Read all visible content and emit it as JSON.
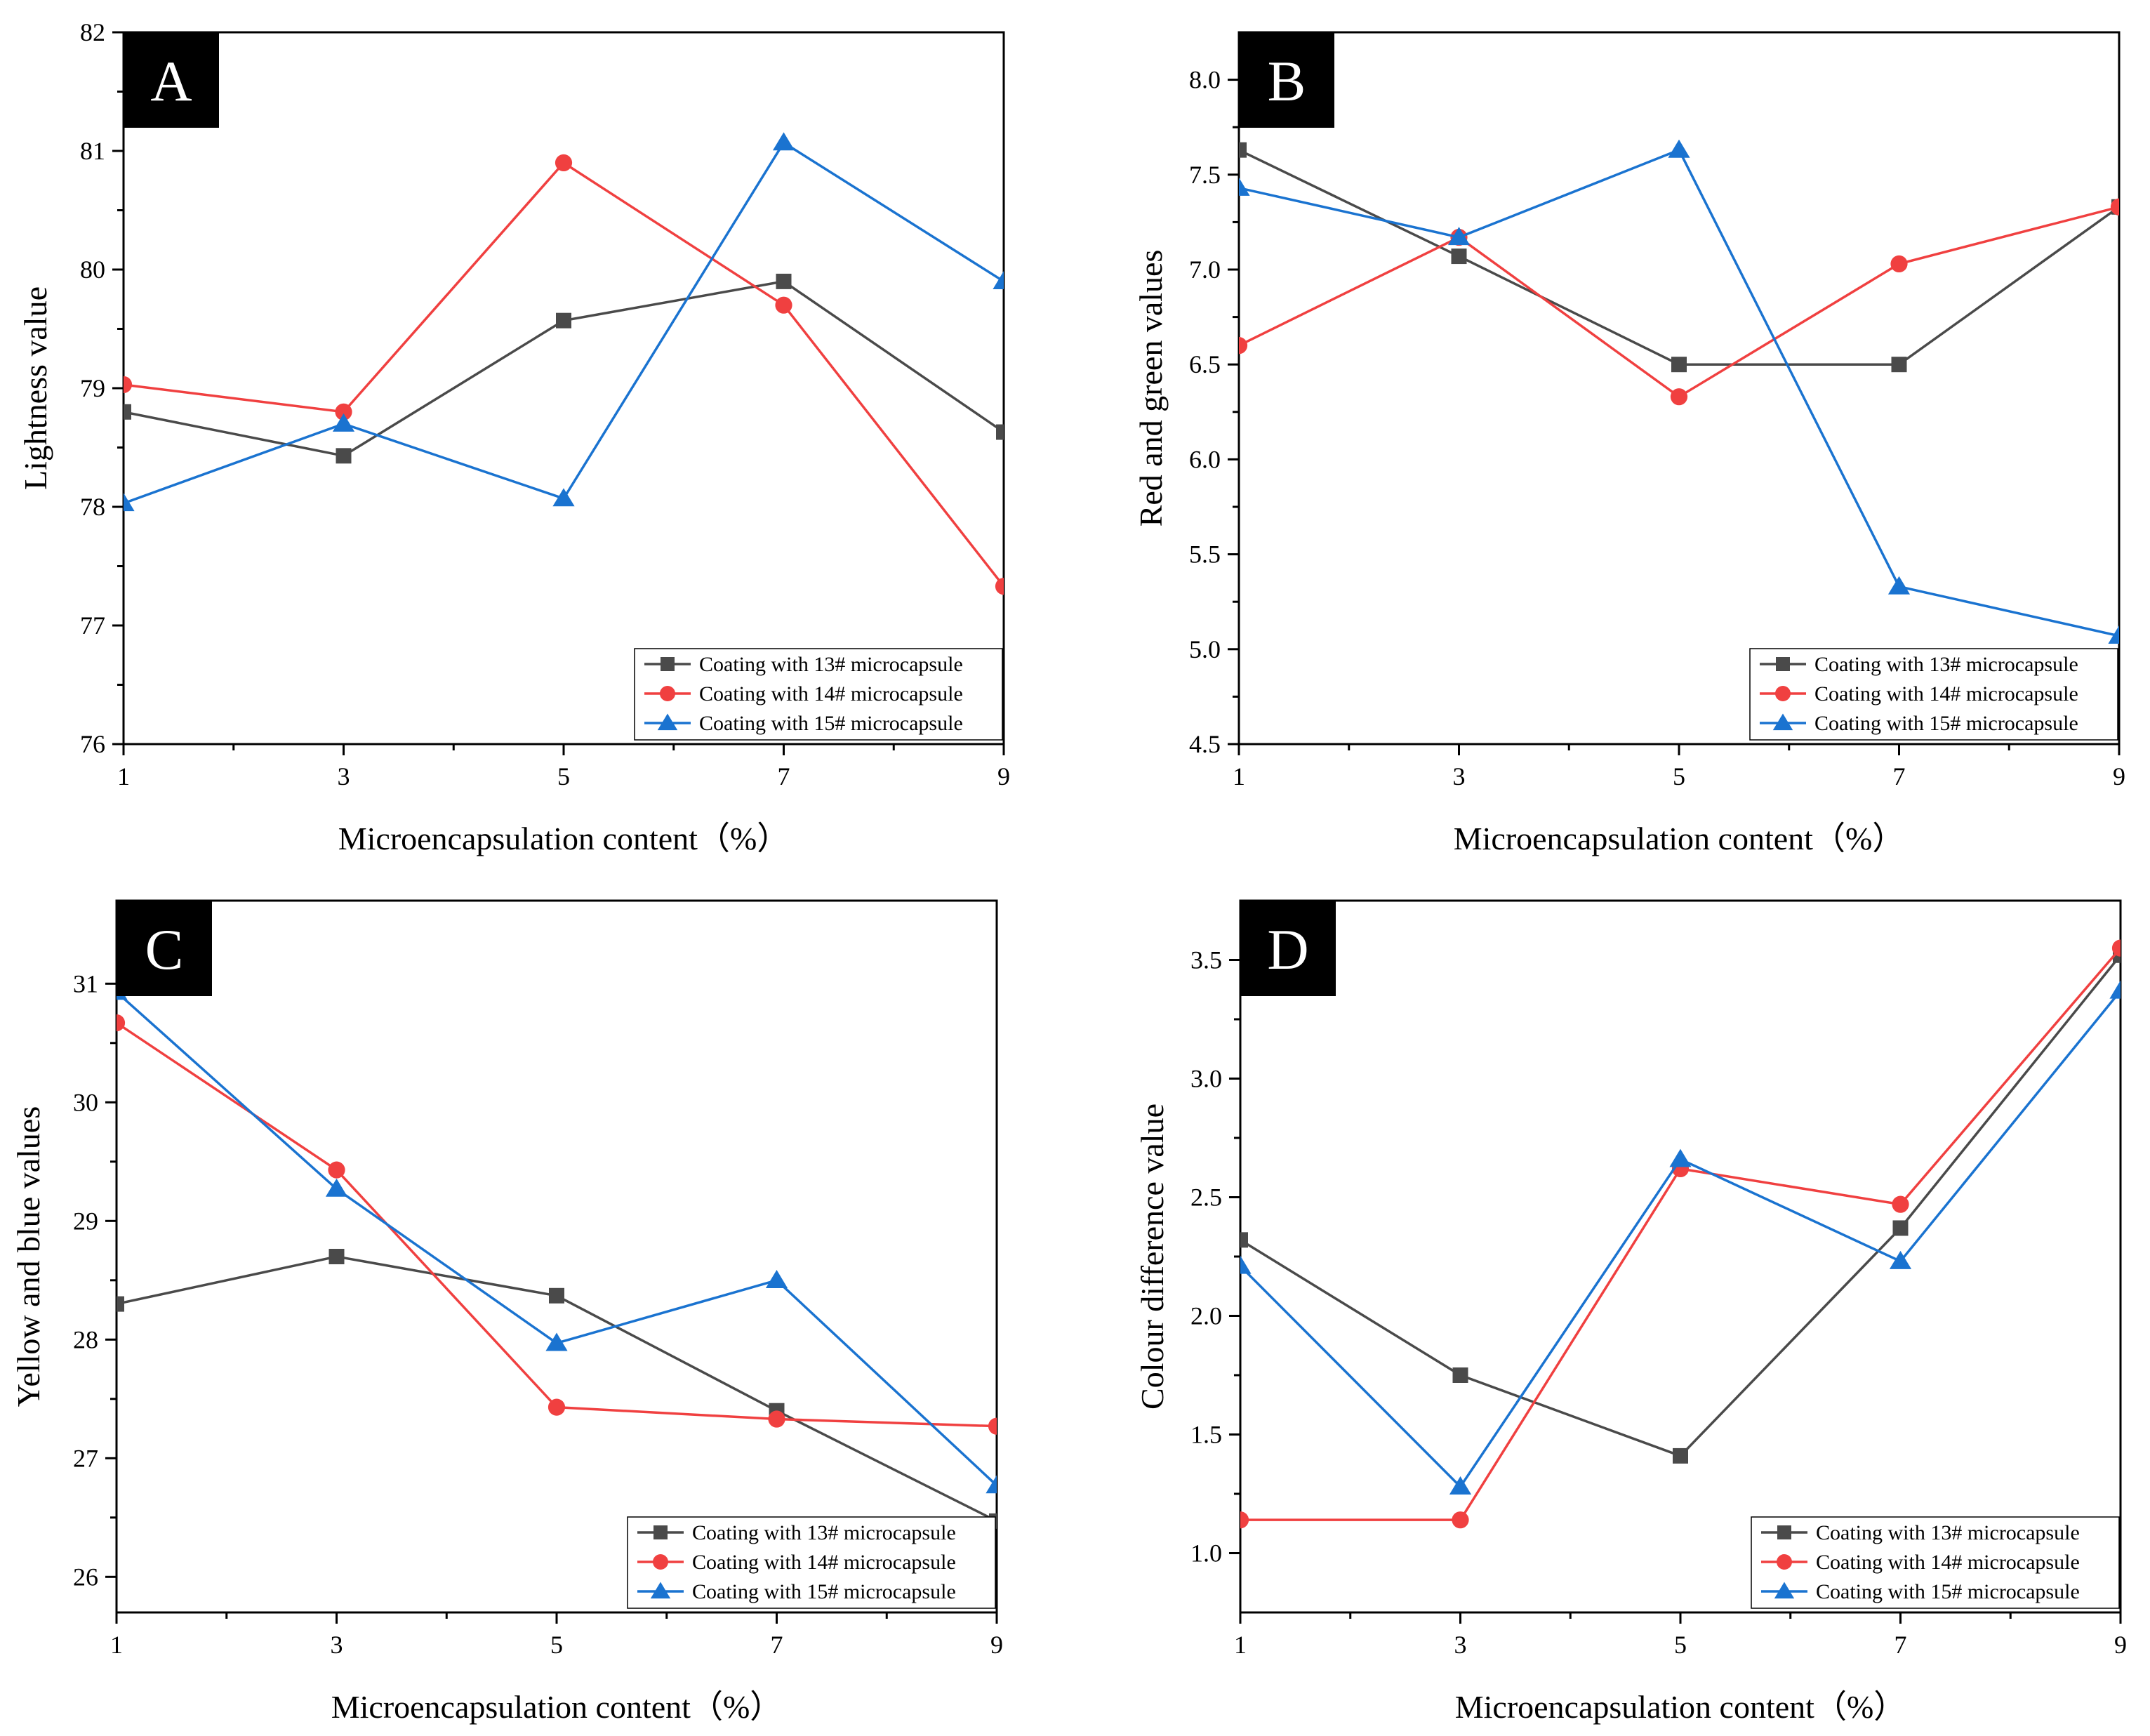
{
  "colors": {
    "s13": "#4a4a4a",
    "s14": "#f04040",
    "s15": "#1a73d0"
  },
  "chart_data": [
    {
      "type": "line",
      "panel": "A",
      "xlabel": "Microencapsulation content（%）",
      "ylabel": "Lightness value",
      "x": [
        1,
        3,
        5,
        7,
        9
      ],
      "xlim": [
        1,
        9
      ],
      "ylim": [
        76,
        82
      ],
      "xticks": [
        1,
        3,
        5,
        7,
        9
      ],
      "yticks": [
        76,
        77,
        78,
        79,
        80,
        81,
        82
      ],
      "ytick_decimals": 0,
      "legend_position": "bottom-right",
      "series": [
        {
          "name": "Coating with 13# microcapsule",
          "marker": "square",
          "color_key": "s13",
          "values": [
            78.8,
            78.43,
            79.57,
            79.9,
            78.63
          ]
        },
        {
          "name": "Coating with 14# microcapsule",
          "marker": "circle",
          "color_key": "s14",
          "values": [
            79.03,
            78.8,
            80.9,
            79.7,
            77.33
          ]
        },
        {
          "name": "Coating with 15# microcapsule",
          "marker": "triangle",
          "color_key": "s15",
          "values": [
            78.03,
            78.7,
            78.07,
            81.07,
            79.9
          ]
        }
      ]
    },
    {
      "type": "line",
      "panel": "B",
      "xlabel": "Microencapsulation content（%）",
      "ylabel": "Red and green values",
      "x": [
        1,
        3,
        5,
        7,
        9
      ],
      "xlim": [
        1,
        9
      ],
      "ylim": [
        4.5,
        8.25
      ],
      "xticks": [
        1,
        3,
        5,
        7,
        9
      ],
      "yticks": [
        4.5,
        5.0,
        5.5,
        6.0,
        6.5,
        7.0,
        7.5,
        8.0
      ],
      "ytick_decimals": 1,
      "legend_position": "bottom-right",
      "series": [
        {
          "name": "Coating with 13# microcapsule",
          "marker": "square",
          "color_key": "s13",
          "values": [
            7.63,
            7.07,
            6.5,
            6.5,
            7.33
          ]
        },
        {
          "name": "Coating with 14# microcapsule",
          "marker": "circle",
          "color_key": "s14",
          "values": [
            6.6,
            7.17,
            6.33,
            7.03,
            7.33
          ]
        },
        {
          "name": "Coating with 15# microcapsule",
          "marker": "triangle",
          "color_key": "s15",
          "values": [
            7.43,
            7.17,
            7.63,
            5.33,
            5.07
          ]
        }
      ]
    },
    {
      "type": "line",
      "panel": "C",
      "xlabel": "Microencapsulation content（%）",
      "ylabel": "Yellow and blue values",
      "x": [
        1,
        3,
        5,
        7,
        9
      ],
      "xlim": [
        1,
        9
      ],
      "ylim": [
        25.7,
        31.7
      ],
      "xticks": [
        1,
        3,
        5,
        7,
        9
      ],
      "yticks": [
        26,
        27,
        28,
        29,
        30,
        31
      ],
      "ytick_decimals": 0,
      "legend_position": "bottom-right",
      "series": [
        {
          "name": "Coating with 13# microcapsule",
          "marker": "square",
          "color_key": "s13",
          "values": [
            28.3,
            28.7,
            28.37,
            27.4,
            26.47
          ]
        },
        {
          "name": "Coating with 14# microcapsule",
          "marker": "circle",
          "color_key": "s14",
          "values": [
            30.67,
            29.43,
            27.43,
            27.33,
            27.27
          ]
        },
        {
          "name": "Coating with 15# microcapsule",
          "marker": "triangle",
          "color_key": "s15",
          "values": [
            30.93,
            29.27,
            27.97,
            28.5,
            26.77
          ]
        }
      ]
    },
    {
      "type": "line",
      "panel": "D",
      "xlabel": "Microencapsulation content（%）",
      "ylabel": "Colour difference value",
      "x": [
        1,
        3,
        5,
        7,
        9
      ],
      "xlim": [
        1,
        9
      ],
      "ylim": [
        0.75,
        3.75
      ],
      "xticks": [
        1,
        3,
        5,
        7,
        9
      ],
      "yticks": [
        1.0,
        1.5,
        2.0,
        2.5,
        3.0,
        3.5
      ],
      "ytick_decimals": 1,
      "legend_position": "bottom-right",
      "series": [
        {
          "name": "Coating with 13# microcapsule",
          "marker": "square",
          "color_key": "s13",
          "values": [
            2.32,
            1.75,
            1.41,
            2.37,
            3.52
          ]
        },
        {
          "name": "Coating with 14# microcapsule",
          "marker": "circle",
          "color_key": "s14",
          "values": [
            1.14,
            1.14,
            2.62,
            2.47,
            3.55
          ]
        },
        {
          "name": "Coating with 15# microcapsule",
          "marker": "triangle",
          "color_key": "s15",
          "values": [
            2.21,
            1.28,
            2.66,
            2.23,
            3.37
          ]
        }
      ]
    }
  ]
}
